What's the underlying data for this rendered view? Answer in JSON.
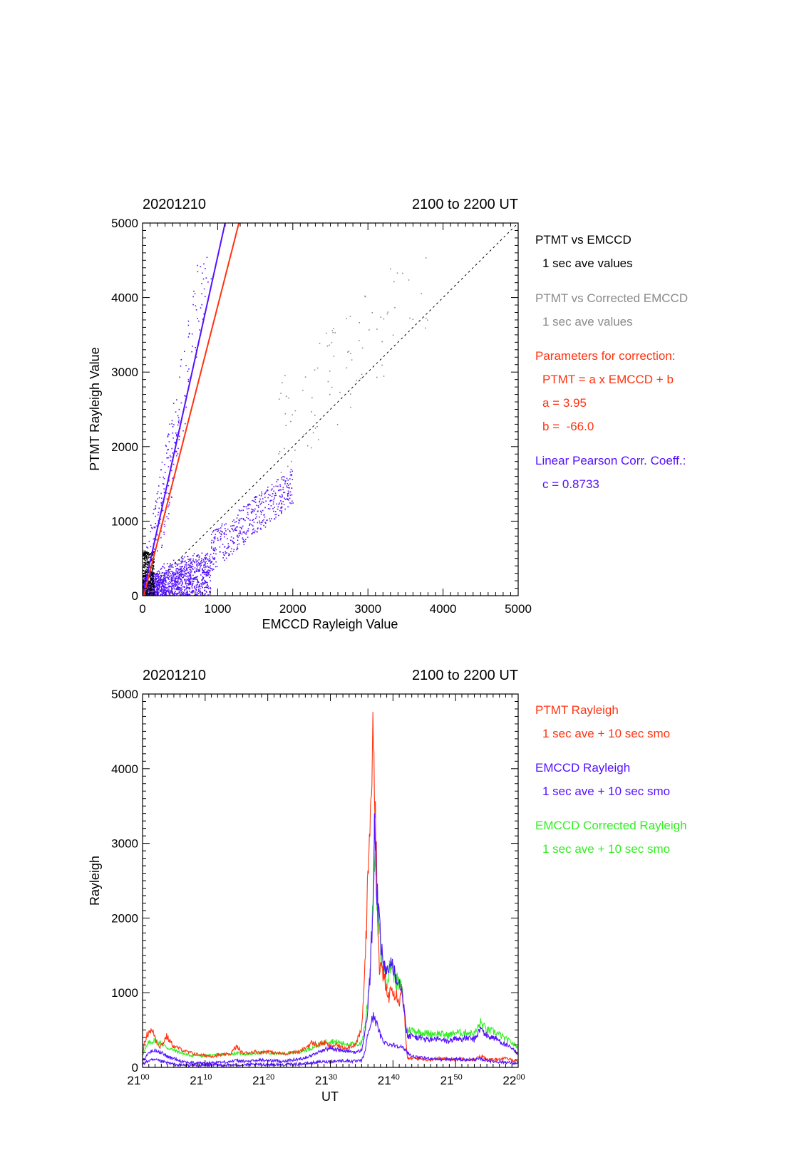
{
  "colors": {
    "black": "#000000",
    "gray": "#8a8a8a",
    "red": "#ff3311",
    "blue": "#5511ff",
    "green": "#33ee22"
  },
  "chart_data": [
    {
      "type": "scatter",
      "date_label": "20201210",
      "time_range_label": "2100 to 2200 UT",
      "xlabel": "EMCCD Rayleigh Value",
      "ylabel": "PTMT Rayleigh Value",
      "xlim": [
        0,
        5000
      ],
      "ylim": [
        0,
        5000
      ],
      "x_ticks": [
        "0",
        "1000",
        "2000",
        "3000",
        "4000",
        "5000"
      ],
      "y_ticks": [
        "0",
        "1000",
        "2000",
        "3000",
        "4000",
        "5000"
      ],
      "legend": {
        "title_black": "PTMT vs EMCCD",
        "sub_black": "1 sec ave values",
        "title_gray": "PTMT vs Corrected EMCCD",
        "sub_gray": "1 sec ave values",
        "params_title": "Parameters for correction:",
        "equation": "PTMT = a x EMCCD + b",
        "a_text": "a = 3.95",
        "b_text": "b =  -66.0",
        "corr_title": "Linear Pearson Corr. Coeff.:",
        "corr_value": "c = 0.8733"
      },
      "fit": {
        "a": 3.95,
        "b": -66.0
      },
      "blue_line": {
        "a": 4.55,
        "b": 0
      },
      "identity_line": [
        [
          0,
          0
        ],
        [
          5000,
          5000
        ]
      ],
      "clusters": [
        {
          "name": "low-blue",
          "x_range": [
            0,
            900
          ],
          "y_range": [
            0,
            600
          ],
          "count": 1400
        },
        {
          "name": "steep-blue",
          "x_range": [
            150,
            480
          ],
          "y_range": [
            600,
            2400
          ],
          "count": 160
        },
        {
          "name": "steep-blue-high",
          "x_range": [
            380,
            720
          ],
          "y_range": [
            2400,
            4550
          ],
          "count": 60
        },
        {
          "name": "diag-blue",
          "x_range": [
            900,
            2000
          ],
          "y_range": [
            400,
            1800
          ],
          "count": 420
        },
        {
          "name": "gray-diag",
          "x_range": [
            1800,
            3800
          ],
          "y_range": [
            1400,
            4550
          ],
          "count": 90
        },
        {
          "name": "black-core",
          "x_range": [
            0,
            150
          ],
          "y_range": [
            0,
            600
          ],
          "count": 320
        }
      ]
    },
    {
      "type": "line",
      "date_label": "20201210",
      "time_range_label": "2100 to 2200 UT",
      "xlabel": "UT",
      "ylabel": "Rayleigh",
      "xlim": [
        0,
        60
      ],
      "ylim": [
        0,
        5000
      ],
      "x_ticks": [
        {
          "h": "21",
          "m": "00"
        },
        {
          "h": "21",
          "m": "10"
        },
        {
          "h": "21",
          "m": "20"
        },
        {
          "h": "21",
          "m": "30"
        },
        {
          "h": "21",
          "m": "40"
        },
        {
          "h": "21",
          "m": "50"
        },
        {
          "h": "22",
          "m": "00"
        }
      ],
      "y_ticks": [
        "0",
        "1000",
        "2000",
        "3000",
        "4000",
        "5000"
      ],
      "legend": {
        "ptmt_title": "PTMT Rayleigh",
        "ptmt_sub": "1 sec ave + 10 sec smo",
        "emccd_title": "EMCCD Rayleigh",
        "emccd_sub": "1 sec ave + 10 sec smo",
        "corr_title": "EMCCD Corrected Rayleigh",
        "corr_sub": "1 sec ave + 10 sec smo"
      },
      "series": [
        {
          "name": "PTMT Rayleigh",
          "color": "red",
          "x": [
            0,
            0.6,
            1.2,
            1.8,
            2.3,
            2.8,
            3.3,
            3.8,
            4.3,
            5.0,
            6,
            7,
            8,
            9,
            10,
            11,
            12,
            13,
            14,
            15,
            16,
            17,
            18,
            19,
            20,
            21,
            22,
            23,
            24,
            25,
            26,
            27,
            28,
            29,
            30,
            31,
            32,
            33,
            34,
            35,
            35.5,
            36.0,
            36.4,
            36.8,
            37.0,
            37.2,
            37.5,
            37.8,
            38.2,
            38.6,
            39.0,
            39.4,
            39.8,
            40.2,
            40.6,
            41.0,
            41.4,
            41.8,
            42.0,
            42.3,
            43,
            44,
            45,
            46,
            47,
            48,
            49,
            50,
            51,
            52,
            53,
            54,
            54.5,
            55,
            56,
            57,
            58,
            59,
            60
          ],
          "values": [
            200,
            420,
            500,
            460,
            330,
            280,
            330,
            420,
            360,
            280,
            250,
            210,
            190,
            170,
            160,
            150,
            160,
            170,
            180,
            280,
            190,
            200,
            210,
            200,
            220,
            190,
            190,
            180,
            210,
            200,
            260,
            330,
            300,
            330,
            280,
            300,
            260,
            280,
            300,
            500,
            1300,
            2500,
            3600,
            4300,
            4100,
            3500,
            2200,
            1250,
            1400,
            1150,
            1000,
            950,
            1150,
            1000,
            980,
            900,
            1050,
            780,
            430,
            120,
            120,
            120,
            110,
            100,
            120,
            120,
            110,
            110,
            120,
            110,
            100,
            150,
            140,
            110,
            100,
            110,
            120,
            100,
            80
          ]
        },
        {
          "name": "EMCCD Rayleigh",
          "color": "blue",
          "x": [
            0,
            1,
            2,
            3,
            4,
            5,
            6,
            7,
            8,
            9,
            10,
            11,
            12,
            13,
            14,
            15,
            16,
            17,
            18,
            19,
            20,
            21,
            22,
            23,
            24,
            25,
            26,
            27,
            28,
            29,
            30,
            31,
            32,
            33,
            34,
            35,
            35.5,
            36.0,
            36.4,
            36.8,
            37.1,
            37.4,
            37.8,
            38.2,
            38.6,
            39.0,
            39.4,
            39.8,
            40.2,
            40.6,
            41.0,
            41.4,
            41.8,
            42.1,
            42.4,
            43,
            44,
            45,
            46,
            47,
            48,
            49,
            50,
            51,
            52,
            53,
            54,
            55,
            56,
            57,
            58,
            59,
            60
          ],
          "values": [
            80,
            200,
            230,
            200,
            140,
            120,
            90,
            70,
            60,
            60,
            50,
            60,
            70,
            70,
            80,
            90,
            80,
            80,
            90,
            100,
            90,
            90,
            80,
            90,
            100,
            110,
            130,
            160,
            200,
            240,
            260,
            240,
            220,
            220,
            200,
            230,
            450,
            800,
            1300,
            2200,
            3300,
            2400,
            1900,
            1500,
            1400,
            1200,
            1350,
            1450,
            1300,
            1200,
            1150,
            1100,
            800,
            500,
            420,
            420,
            400,
            380,
            370,
            380,
            360,
            350,
            390,
            380,
            390,
            370,
            520,
            420,
            400,
            360,
            300,
            250,
            180
          ]
        },
        {
          "name": "EMCCD Blue Low",
          "color": "blue",
          "x": [
            0,
            1,
            2,
            3,
            4,
            5,
            6,
            8,
            10,
            12,
            14,
            16,
            18,
            20,
            22,
            24,
            26,
            28,
            30,
            32,
            34,
            35,
            35.5,
            36,
            36.5,
            37,
            37.5,
            38,
            38.5,
            39,
            40,
            41,
            42,
            43,
            44,
            46,
            48,
            50,
            52,
            54,
            56,
            58,
            60
          ],
          "values": [
            40,
            90,
            100,
            80,
            60,
            40,
            30,
            30,
            25,
            30,
            30,
            35,
            35,
            40,
            35,
            40,
            50,
            70,
            80,
            90,
            80,
            90,
            200,
            450,
            600,
            700,
            550,
            420,
            350,
            320,
            300,
            290,
            230,
            150,
            130,
            120,
            100,
            110,
            100,
            110,
            80,
            70,
            50
          ]
        },
        {
          "name": "EMCCD Corrected Rayleigh",
          "color": "green",
          "x": [
            0,
            1,
            2,
            3,
            4,
            5,
            6,
            7,
            8,
            9,
            10,
            11,
            12,
            13,
            14,
            15,
            16,
            17,
            18,
            19,
            20,
            21,
            22,
            23,
            24,
            25,
            26,
            27,
            28,
            29,
            30,
            31,
            32,
            33,
            34,
            35,
            35.5,
            36.0,
            36.4,
            36.8,
            37.1,
            37.4,
            37.8,
            38.2,
            38.6,
            39.0,
            39.4,
            39.8,
            40.2,
            40.6,
            41.0,
            41.4,
            41.8,
            42.1,
            42.4,
            43,
            44,
            45,
            46,
            47,
            48,
            49,
            50,
            51,
            52,
            53,
            54,
            55,
            56,
            57,
            58,
            59,
            60
          ],
          "values": [
            170,
            330,
            360,
            320,
            260,
            230,
            200,
            170,
            160,
            160,
            150,
            160,
            170,
            170,
            180,
            190,
            180,
            180,
            190,
            200,
            190,
            190,
            180,
            190,
            200,
            210,
            230,
            260,
            300,
            340,
            360,
            340,
            320,
            320,
            300,
            330,
            550,
            900,
            1400,
            2300,
            3000,
            2300,
            1800,
            1450,
            1350,
            1150,
            1300,
            1400,
            1250,
            1150,
            1100,
            1050,
            780,
            520,
            500,
            500,
            480,
            460,
            450,
            460,
            440,
            430,
            470,
            460,
            470,
            450,
            600,
            500,
            480,
            440,
            380,
            330,
            260
          ]
        }
      ]
    }
  ]
}
